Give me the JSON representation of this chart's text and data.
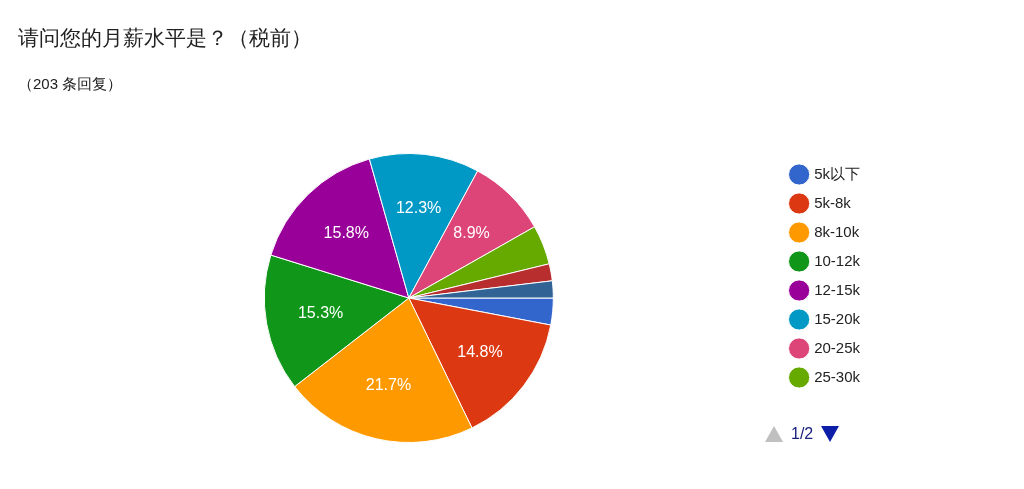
{
  "chart_data": {
    "type": "pie",
    "title": "请问您的月薪水平是？（税前）",
    "subtitle": "（203 条回复）",
    "categories": [
      "5k以下",
      "5k-8k",
      "8k-10k",
      "10-12k",
      "12-15k",
      "15-20k",
      "20-25k",
      "25-30k",
      null,
      null
    ],
    "values": [
      3.0,
      14.8,
      21.7,
      15.3,
      15.8,
      12.3,
      8.9,
      4.4,
      1.9,
      1.9
    ],
    "colors": [
      "#3366cc",
      "#dc3912",
      "#ff9900",
      "#109618",
      "#990099",
      "#0099c6",
      "#dd4477",
      "#66aa00",
      "#b82e2e",
      "#316395"
    ],
    "value_labels": [
      null,
      "14.8%",
      "21.7%",
      "15.3%",
      "15.8%",
      "12.3%",
      "8.9%",
      null,
      null,
      null
    ],
    "legend": "right",
    "annotations": [
      "1/2"
    ]
  }
}
